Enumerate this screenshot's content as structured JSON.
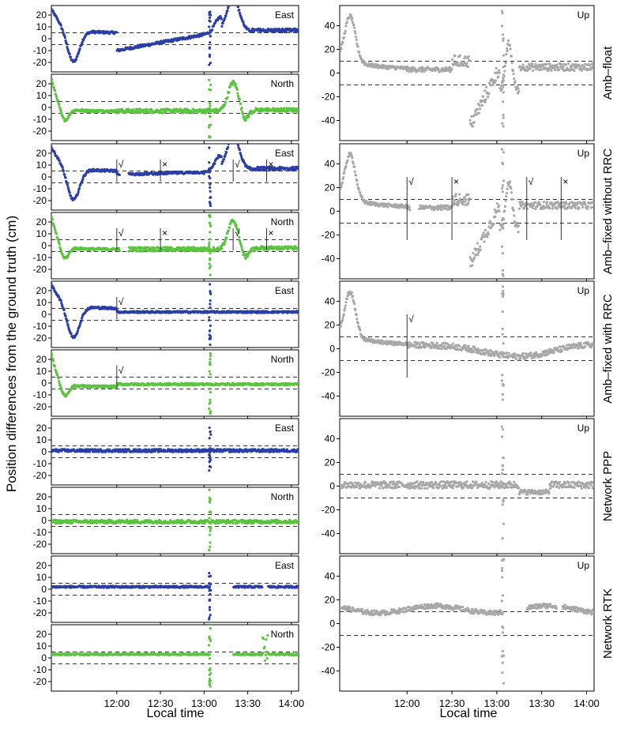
{
  "chart_data": {
    "type": "scatter",
    "ylabel": "Position differences from the ground truth (cm)",
    "xlabel": "Local time",
    "x_ticks": [
      "12:00",
      "12:30",
      "13:00",
      "13:30",
      "14:00"
    ],
    "x_range_minutes": [
      -45,
      125
    ],
    "threshold_cm": {
      "horizontal": 5,
      "up": 10
    },
    "colors": {
      "east": "#2b3ea6",
      "north": "#5ac43f",
      "up": "#a8a8a8"
    },
    "horizontal_axis": {
      "ylim": [
        -28,
        28
      ],
      "ticks": [
        20,
        10,
        0,
        -10,
        -20
      ]
    },
    "up_axis": {
      "ylim": [
        -57,
        57
      ],
      "ticks": [
        40,
        20,
        0,
        -20,
        -40
      ]
    },
    "groups": [
      {
        "name": "Amb–float",
        "mode": "float",
        "panels": {
          "east": "East",
          "north": "North",
          "up": "Up"
        },
        "markers": []
      },
      {
        "name": "Amb–fixed without RRC",
        "mode": "fixed",
        "panels": {
          "east": "East",
          "north": "North",
          "up": "Up"
        },
        "markers": [
          {
            "t": 0,
            "symbol": "√"
          },
          {
            "t": 30,
            "symbol": "×"
          },
          {
            "t": 80,
            "symbol": "√"
          },
          {
            "t": 103,
            "symbol": "×"
          }
        ]
      },
      {
        "name": "Amb–fixed with RRC",
        "mode": "rrc",
        "panels": {
          "east": "East",
          "north": "North",
          "up": "Up"
        },
        "markers": [
          {
            "t": 0,
            "symbol": "√"
          }
        ]
      },
      {
        "name": "Network PPP",
        "mode": "ppp",
        "panels": {
          "east": "East",
          "north": "North",
          "up": "Up"
        },
        "markers": []
      },
      {
        "name": "Network RTK",
        "mode": "rtk",
        "panels": {
          "east": "East",
          "north": "North",
          "up": "Up"
        },
        "markers": []
      }
    ]
  }
}
